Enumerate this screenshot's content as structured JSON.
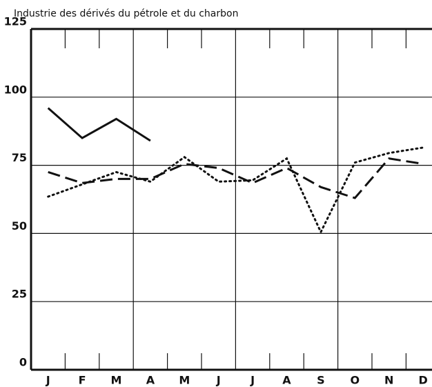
{
  "chart_data": {
    "type": "line",
    "title": "Industrie des dérivés du pétrole et du charbon",
    "categories": [
      "J",
      "F",
      "M",
      "A",
      "M",
      "J",
      "J",
      "A",
      "S",
      "O",
      "N",
      "D"
    ],
    "series": [
      {
        "color": "#111111",
        "style": "solid",
        "values": [
          96,
          85,
          92,
          84,
          null,
          null,
          null,
          null,
          null,
          null,
          null,
          null
        ]
      },
      {
        "color": "#111111",
        "style": "dashed",
        "values": [
          72.5,
          68.5,
          70,
          70,
          75.5,
          74,
          68.5,
          74,
          67,
          63,
          77.5,
          75.5
        ]
      },
      {
        "color": "#111111",
        "style": "dotted",
        "values": [
          63.5,
          68,
          72.5,
          69,
          78,
          69,
          69.5,
          77.5,
          50.5,
          76,
          79.5,
          81.5
        ]
      }
    ],
    "ylim": [
      0,
      125
    ],
    "yticks": [
      0,
      25,
      50,
      75,
      100,
      125
    ],
    "grid": true
  }
}
